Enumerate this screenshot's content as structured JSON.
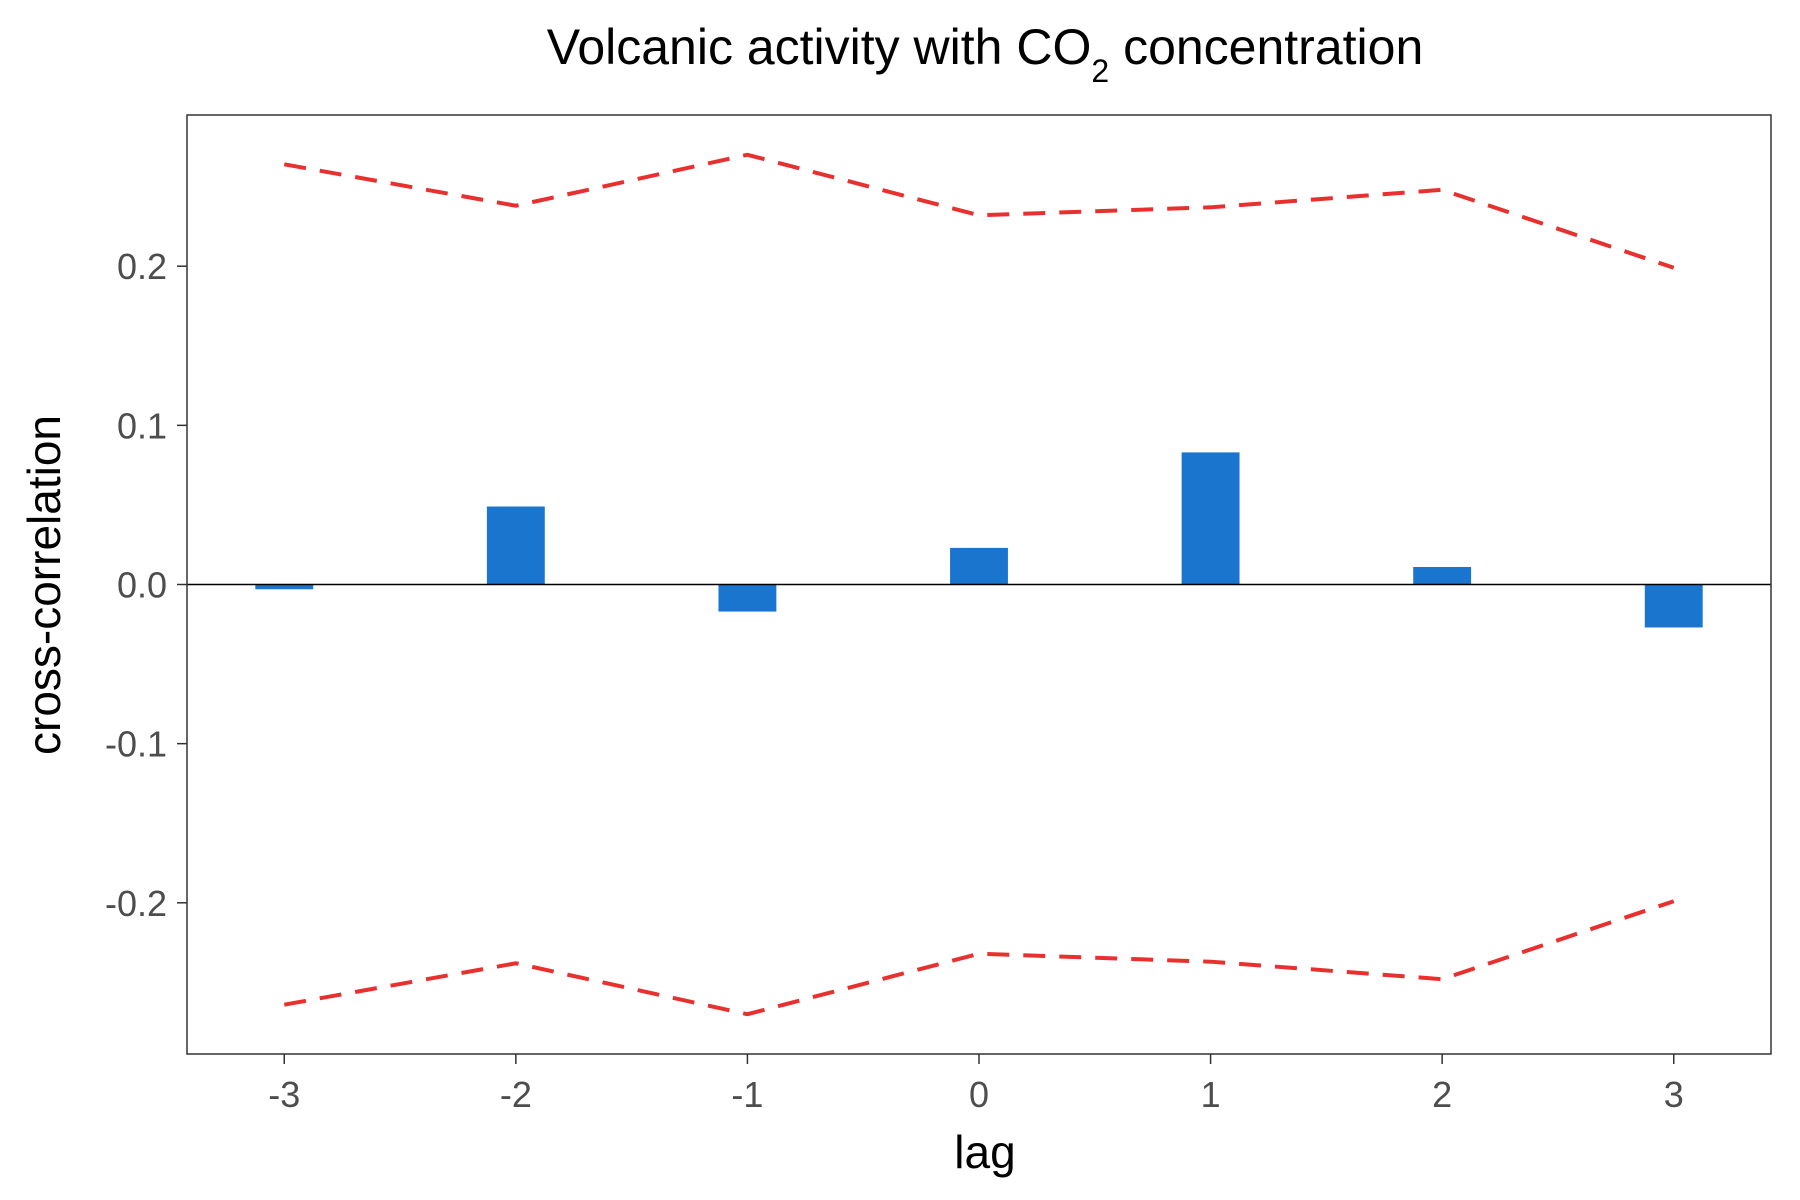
{
  "chart_data": {
    "type": "bar",
    "title": "Volcanic activity with CO",
    "title_subscript": "2",
    "title_suffix": " concentration",
    "xlabel": "lag",
    "ylabel": "cross-correlation",
    "x": [
      -3,
      -2,
      -1,
      0,
      1,
      2,
      3
    ],
    "xticks": [
      "-3",
      "-2",
      "-1",
      "0",
      "1",
      "2",
      "3"
    ],
    "xlim": [
      -3.42,
      3.42
    ],
    "ylim": [
      -0.295,
      0.295
    ],
    "yticks": [
      -0.2,
      -0.1,
      0.0,
      0.1,
      0.2
    ],
    "ytick_labels": [
      "-0.2",
      "-0.1",
      "0.0",
      "0.1",
      "0.2"
    ],
    "series": [
      {
        "values": [
          -0.003,
          0.049,
          -0.017,
          0.023,
          0.083,
          0.011,
          -0.027
        ]
      }
    ],
    "confidence_bounds": {
      "upper": [
        0.264,
        0.238,
        0.27,
        0.232,
        0.237,
        0.248,
        0.199
      ],
      "lower": [
        -0.264,
        -0.238,
        -0.27,
        -0.232,
        -0.237,
        -0.248,
        -0.199
      ]
    },
    "bar_color": "#1a75cf",
    "bound_color": "#e8302f",
    "grid": false,
    "legend": "none"
  }
}
